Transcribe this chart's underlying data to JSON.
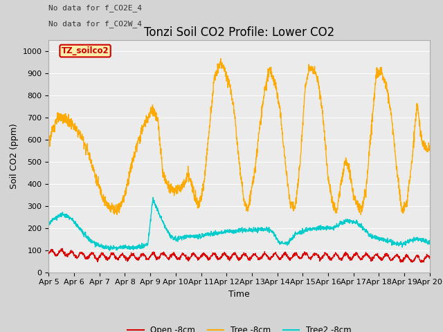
{
  "title": "Tonzi Soil CO2 Profile: Lower CO2",
  "ylabel": "Soil CO2 (ppm)",
  "xlabel": "Time",
  "annotations": [
    "No data for f_CO2E_4",
    "No data for f_CO2W_4"
  ],
  "legend_label": "TZ_soilco2",
  "series_labels": [
    "Open -8cm",
    "Tree -8cm",
    "Tree2 -8cm"
  ],
  "series_colors": [
    "#dd0000",
    "#ffaa00",
    "#00cccc"
  ],
  "ylim": [
    0,
    1050
  ],
  "x_tick_labels": [
    "Apr 5",
    "Apr 6",
    "Apr 7",
    "Apr 8",
    "Apr 9",
    "Apr 10",
    "Apr 11",
    "Apr 12",
    "Apr 13",
    "Apr 14",
    "Apr 15",
    "Apr 16",
    "Apr 17",
    "Apr 18",
    "Apr 19",
    "Apr 20"
  ],
  "plot_bg_color": "#ebebeb",
  "fig_bg_color": "#d4d4d4",
  "grid_color": "#ffffff",
  "title_fontsize": 12,
  "axis_fontsize": 9,
  "tick_fontsize": 8,
  "orange_keys_t": [
    0,
    0.15,
    0.3,
    0.5,
    0.7,
    0.9,
    1.1,
    1.3,
    1.5,
    1.7,
    1.9,
    2.1,
    2.3,
    2.5,
    2.7,
    2.85,
    3.0,
    3.15,
    3.3,
    3.5,
    3.7,
    3.9,
    4.1,
    4.3,
    4.5,
    4.7,
    4.85,
    5.0,
    5.15,
    5.3,
    5.5,
    5.7,
    5.9,
    6.1,
    6.3,
    6.5,
    6.65,
    6.8,
    7.0,
    7.15,
    7.3,
    7.5,
    7.7,
    7.85,
    8.0,
    8.15,
    8.3,
    8.5,
    8.7,
    8.9,
    9.1,
    9.3,
    9.5,
    9.7,
    9.9,
    10.1,
    10.25,
    10.4,
    10.6,
    10.8,
    11.0,
    11.2,
    11.35,
    11.5,
    11.7,
    11.85,
    12.0,
    12.2,
    12.35,
    12.5,
    12.7,
    12.9,
    13.1,
    13.3,
    13.5,
    13.7,
    13.9,
    14.1,
    14.3,
    14.5,
    14.7,
    14.9,
    15.0
  ],
  "orange_keys_v": [
    580,
    640,
    690,
    700,
    690,
    670,
    640,
    610,
    560,
    490,
    410,
    350,
    300,
    290,
    280,
    310,
    350,
    430,
    500,
    580,
    650,
    700,
    740,
    680,
    440,
    390,
    375,
    370,
    380,
    390,
    440,
    370,
    300,
    390,
    620,
    860,
    920,
    950,
    890,
    840,
    730,
    500,
    310,
    290,
    380,
    490,
    650,
    820,
    920,
    860,
    740,
    510,
    310,
    290,
    490,
    840,
    920,
    920,
    870,
    700,
    420,
    300,
    280,
    400,
    510,
    460,
    340,
    300,
    290,
    380,
    650,
    900,
    910,
    840,
    700,
    470,
    280,
    310,
    500,
    760,
    590,
    550,
    570
  ],
  "cyan_keys_t": [
    0,
    0.3,
    0.6,
    0.9,
    1.2,
    1.5,
    1.8,
    2.1,
    2.4,
    2.7,
    3.0,
    3.3,
    3.6,
    3.9,
    4.1,
    4.4,
    4.6,
    4.8,
    5.0,
    5.3,
    5.6,
    5.9,
    6.2,
    6.5,
    6.8,
    7.0,
    7.3,
    7.6,
    7.9,
    8.2,
    8.5,
    8.8,
    9.1,
    9.4,
    9.7,
    10.0,
    10.3,
    10.6,
    10.9,
    11.2,
    11.5,
    11.8,
    12.1,
    12.4,
    12.7,
    13.0,
    13.3,
    13.6,
    13.9,
    14.2,
    14.5,
    14.8,
    15.0
  ],
  "cyan_keys_v": [
    220,
    250,
    260,
    240,
    200,
    160,
    130,
    115,
    110,
    110,
    115,
    110,
    115,
    125,
    330,
    250,
    200,
    165,
    150,
    155,
    165,
    160,
    170,
    175,
    180,
    185,
    185,
    190,
    190,
    190,
    195,
    185,
    130,
    130,
    170,
    185,
    195,
    200,
    200,
    200,
    220,
    235,
    225,
    195,
    160,
    155,
    145,
    130,
    125,
    140,
    150,
    140,
    135
  ],
  "red_keys_t": [
    0,
    0.5,
    1.0,
    1.5,
    2.0,
    2.5,
    3.0,
    3.5,
    4.0,
    4.5,
    5.0,
    5.5,
    6.0,
    6.5,
    7.0,
    7.5,
    8.0,
    8.5,
    9.0,
    9.5,
    10.0,
    10.5,
    11.0,
    11.5,
    12.0,
    12.5,
    13.0,
    13.5,
    14.0,
    14.5,
    15.0
  ],
  "red_keys_v": [
    85,
    90,
    80,
    75,
    70,
    72,
    68,
    70,
    72,
    75,
    72,
    70,
    72,
    70,
    73,
    72,
    70,
    72,
    73,
    72,
    75,
    73,
    72,
    70,
    72,
    70,
    70,
    68,
    62,
    60,
    62
  ]
}
